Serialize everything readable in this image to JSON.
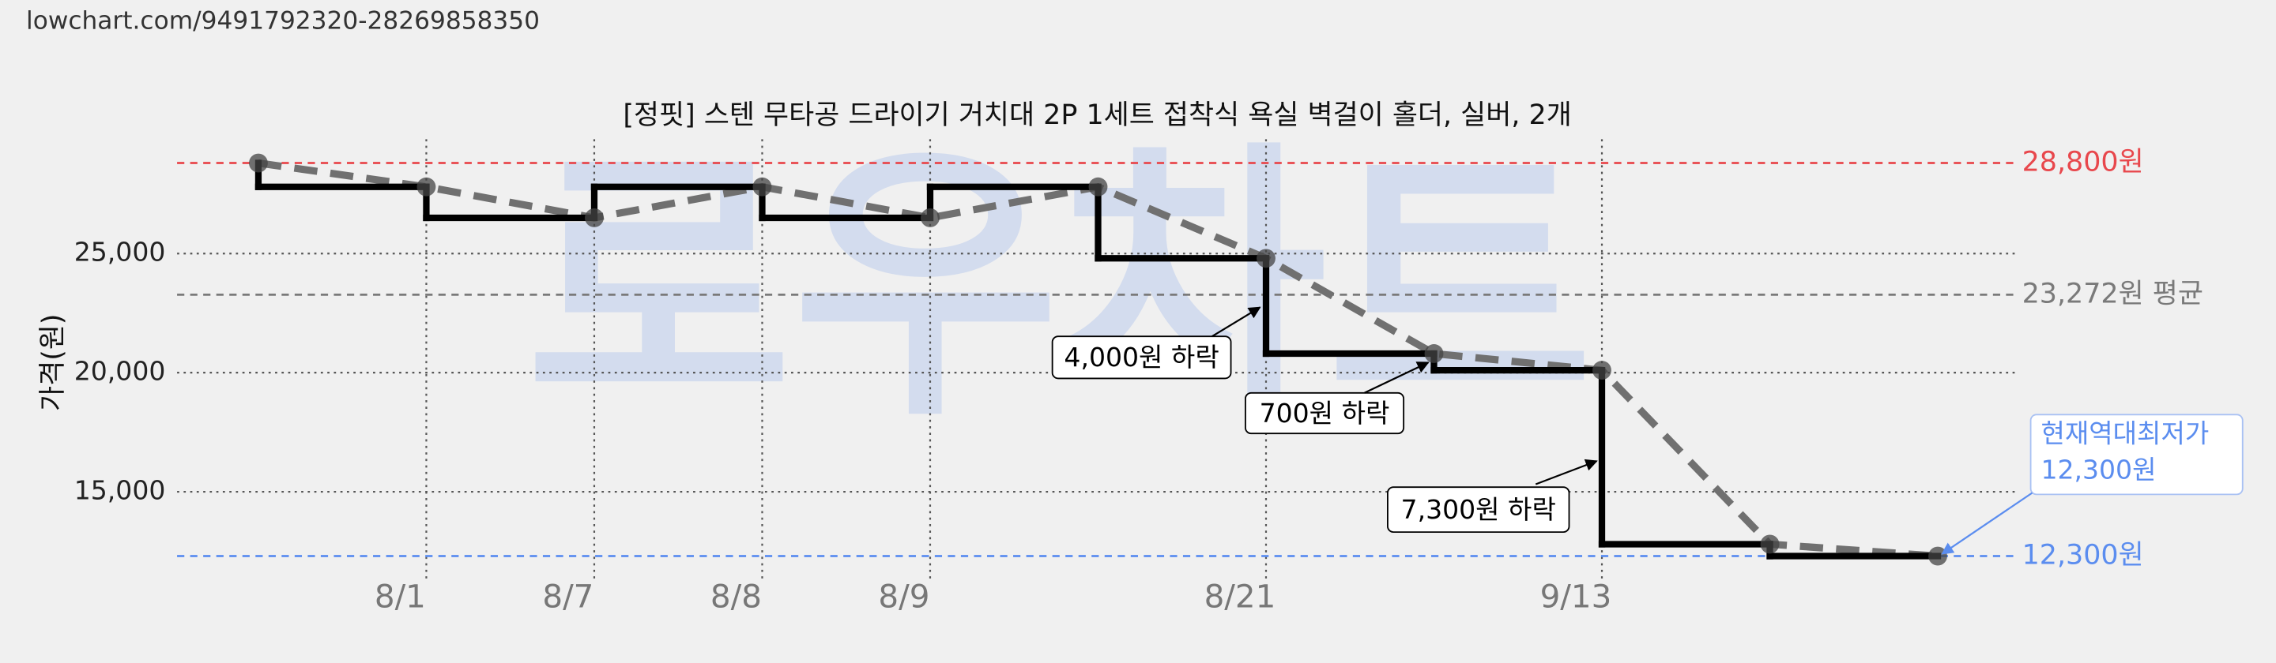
{
  "page": {
    "url": "lowchart.com/9491792320-28269858350",
    "watermark": "로우차트"
  },
  "chart_data": {
    "type": "line",
    "step": true,
    "title": "[정핏] 스텐 무타공 드라이기 거치대 2P 1세트 접착식 욕실 벽걸이 홀더, 실버, 2개",
    "y_label": "가격(원)",
    "categories": [
      null,
      "8/1",
      "8/7",
      "8/8",
      "8/9",
      null,
      "8/21",
      null,
      "9/13",
      null,
      null
    ],
    "series": [
      {
        "color": "#000000",
        "trend_color": "#707070",
        "values": [
          28800,
          27800,
          26500,
          27800,
          26500,
          27800,
          24800,
          20800,
          20100,
          12800,
          12300
        ]
      }
    ],
    "ylim": [
      11300,
      29800
    ],
    "yticks": [
      {
        "value": 15000,
        "label": "15,000"
      },
      {
        "value": 20000,
        "label": "20,000"
      },
      {
        "value": 25000,
        "label": "25,000"
      }
    ],
    "grid": true,
    "reference_lines": [
      {
        "value": 28800,
        "label": "28,800원",
        "color": "#e8474c"
      },
      {
        "value": 23272,
        "label": "23,272원 평균",
        "color": "#7a7a7a"
      },
      {
        "value": 12300,
        "label": "12,300원",
        "color": "#5b8def"
      }
    ],
    "annotations": [
      {
        "text": "4,000원 하락"
      },
      {
        "text": "700원 하락"
      },
      {
        "text": "7,300원 하락"
      },
      {
        "text": [
          "현재역대최저가",
          "12,300원"
        ],
        "color": "#5b8def"
      }
    ]
  }
}
